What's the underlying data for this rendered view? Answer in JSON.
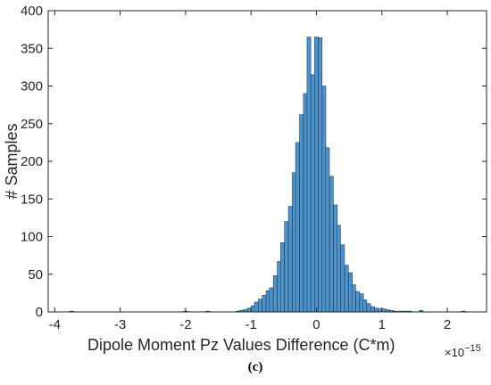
{
  "chart_data": {
    "type": "bar",
    "xlabel": "Dipole Moment Pz Values Difference (C*m)",
    "x_exponent": {
      "base": "×10",
      "power": "−15"
    },
    "ylabel": "# Samples",
    "caption": "(c)",
    "xlim": [
      -4.1,
      2.6
    ],
    "ylim": [
      0,
      400
    ],
    "xticks": [
      -4,
      -3,
      -2,
      -1,
      0,
      1,
      2
    ],
    "xtick_labels": [
      "-4",
      "-3",
      "-2",
      "-1",
      "0",
      "1",
      "2"
    ],
    "yticks": [
      0,
      50,
      100,
      150,
      200,
      250,
      300,
      350,
      400
    ],
    "bar_color": "#4f94c9",
    "bar_edge_color": "#1f3f66",
    "bin_width": 0.057,
    "bin_centers": [
      -3.74,
      -2.0,
      -1.66,
      -1.2,
      -1.15,
      -1.09,
      -1.03,
      -0.97,
      -0.92,
      -0.86,
      -0.8,
      -0.74,
      -0.69,
      -0.63,
      -0.57,
      -0.52,
      -0.46,
      -0.4,
      -0.34,
      -0.29,
      -0.23,
      -0.17,
      -0.115,
      -0.057,
      0.0,
      0.057,
      0.115,
      0.17,
      0.23,
      0.29,
      0.34,
      0.4,
      0.46,
      0.52,
      0.57,
      0.63,
      0.69,
      0.74,
      0.8,
      0.86,
      0.92,
      0.97,
      1.03,
      1.09,
      1.15,
      1.2,
      1.26,
      1.32,
      1.38,
      1.43,
      1.6,
      2.25
    ],
    "counts": [
      1,
      1,
      1,
      1,
      2,
      3,
      5,
      8,
      13,
      17,
      22,
      28,
      32,
      48,
      67,
      92,
      120,
      140,
      185,
      225,
      262,
      290,
      365,
      315,
      365,
      364,
      300,
      218,
      180,
      142,
      115,
      89,
      62,
      52,
      36,
      27,
      24,
      16,
      11,
      7,
      5,
      4,
      4,
      3,
      2,
      1,
      1,
      1,
      1,
      1,
      2,
      1
    ]
  }
}
